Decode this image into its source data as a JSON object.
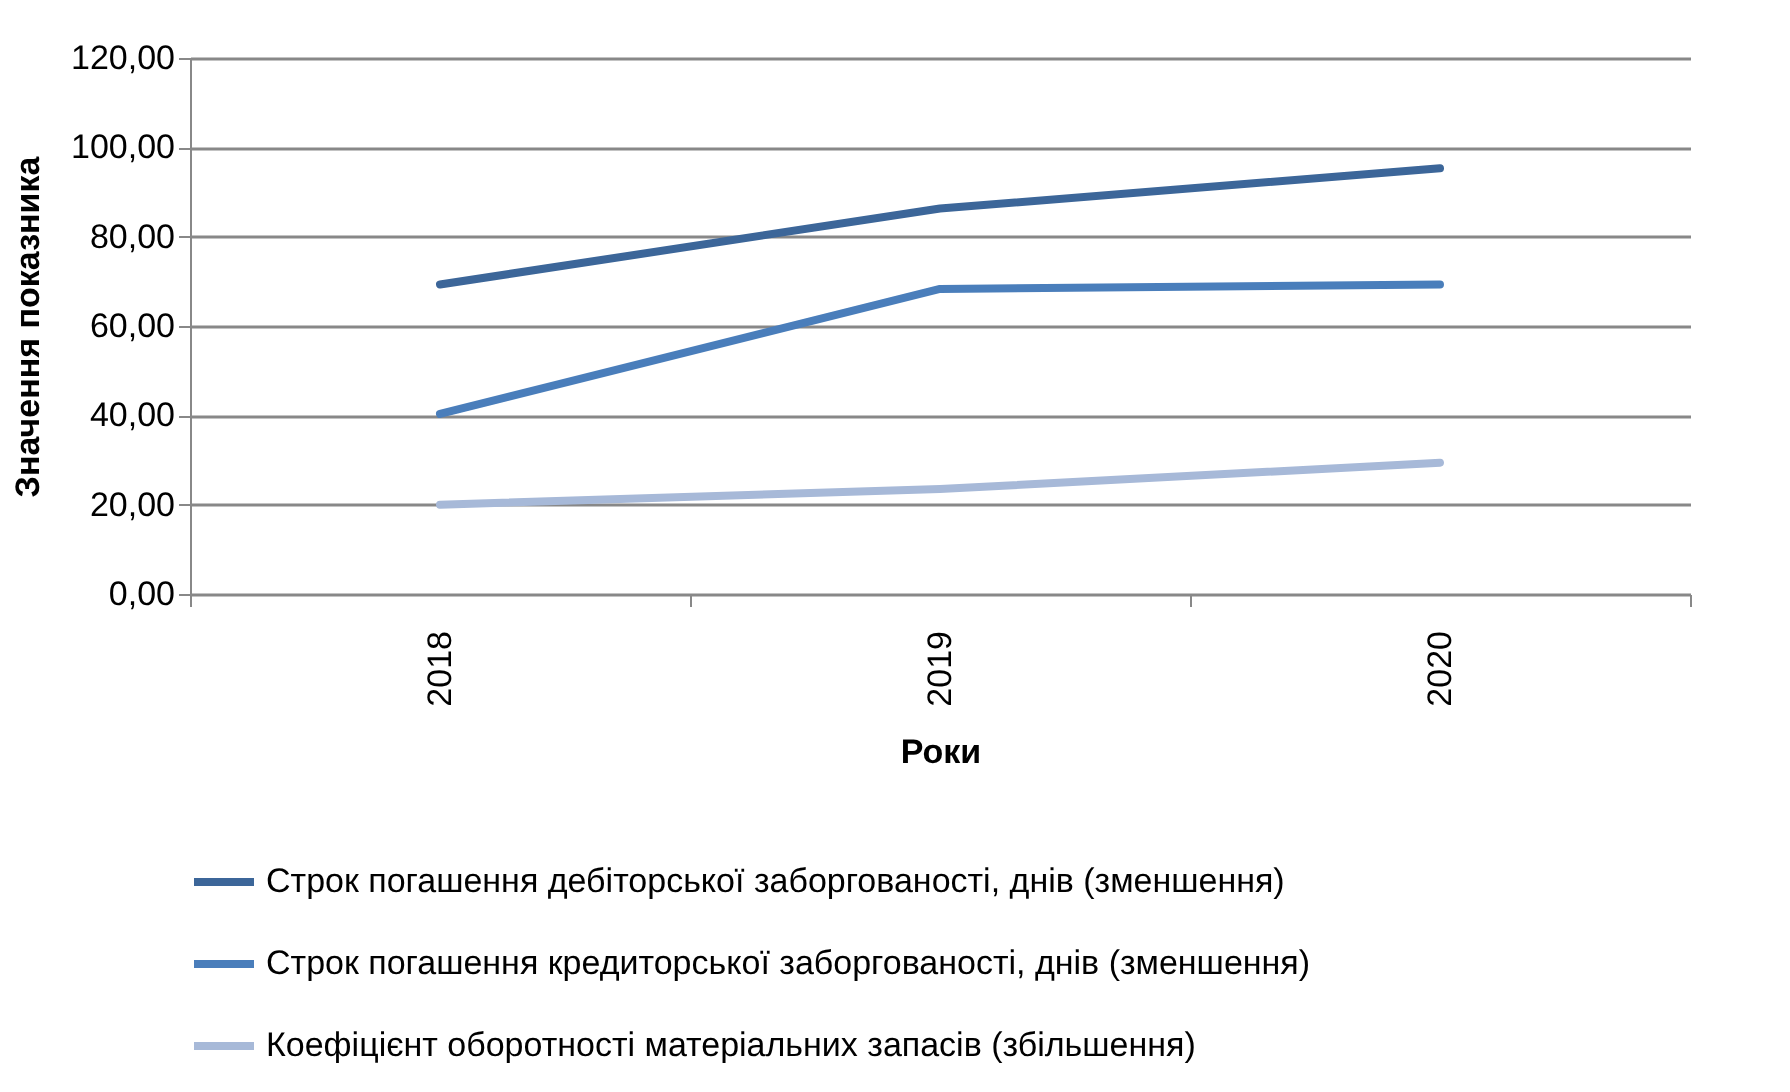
{
  "chart_data": {
    "type": "line",
    "xlabel": "Роки",
    "ylabel": "Значення показника",
    "categories": [
      "2018",
      "2019",
      "2020"
    ],
    "series": [
      {
        "name": "Строк погашення дебіторської заборгованості, днів (зменшення)",
        "color": "#3c6699",
        "values": [
          69.3,
          86.3,
          95.3
        ]
      },
      {
        "name": "Строк погашення кредиторської заборгованості, днів (зменшення)",
        "color": "#4a7ebb",
        "values": [
          40.3,
          68.3,
          69.3
        ]
      },
      {
        "name": "Коефіцієнт оборотності матеріальних запасів (збільшення)",
        "color": "#a7b9d8",
        "values": [
          20,
          23.5,
          29.4
        ]
      }
    ],
    "ylim": [
      0,
      120
    ],
    "yticks": [
      {
        "value": 0,
        "label": "0,00"
      },
      {
        "value": 20,
        "label": "20,00"
      },
      {
        "value": 40,
        "label": "40,00"
      },
      {
        "value": 60,
        "label": "60,00"
      },
      {
        "value": 80,
        "label": "80,00"
      },
      {
        "value": 100,
        "label": "100,00"
      },
      {
        "value": 120,
        "label": "120,00"
      }
    ],
    "grid": "y",
    "legend": "bottom",
    "marker": "none",
    "line_style": "solid"
  }
}
